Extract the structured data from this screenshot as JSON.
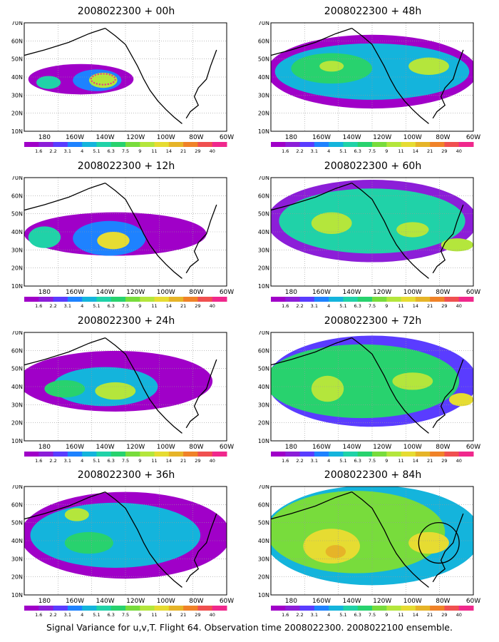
{
  "panels": [
    {
      "title": "2008022300 + 00h"
    },
    {
      "title": "2008022300 + 48h"
    },
    {
      "title": "2008022300 + 12h"
    },
    {
      "title": "2008022300 + 60h"
    },
    {
      "title": "2008022300 + 24h"
    },
    {
      "title": "2008022300 + 72h"
    },
    {
      "title": "2008022300 + 36h"
    },
    {
      "title": "2008022300 + 84h"
    }
  ],
  "axes": {
    "lat_labels": [
      "70N",
      "60N",
      "50N",
      "40N",
      "30N",
      "20N",
      "10N"
    ],
    "lon_labels": [
      "180",
      "160W",
      "140W",
      "120W",
      "100W",
      "80W",
      "60W"
    ]
  },
  "colorbar": {
    "levels": [
      "1.6",
      "2.2",
      "3.1",
      "4",
      "5.1",
      "6.3",
      "7.5",
      "9",
      "11",
      "14",
      "21",
      "29",
      "40"
    ],
    "colors": [
      "#a000c8",
      "#8c1ed8",
      "#5a3cff",
      "#1e82ff",
      "#14b4dc",
      "#20d2a8",
      "#28d26e",
      "#78dc3c",
      "#b4e63c",
      "#e6dc32",
      "#e6b428",
      "#f08228",
      "#f05050",
      "#f0288c"
    ]
  },
  "caption": "Signal Variance for u,v,T. Flight 64. Observation time 2008022300. 2008022100 ensemble."
}
